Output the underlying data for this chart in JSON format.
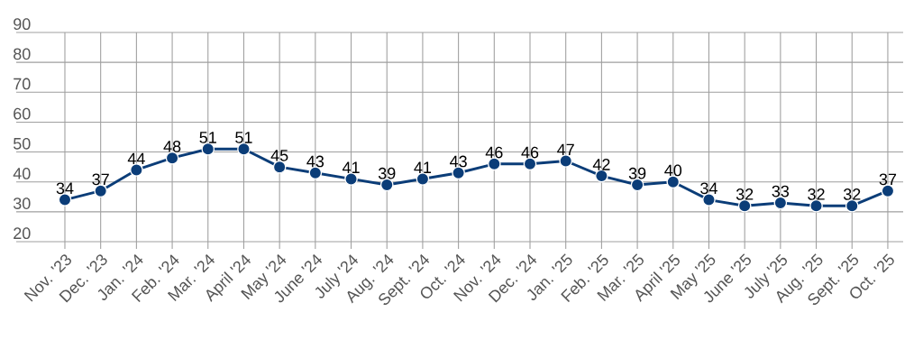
{
  "chart_data": {
    "type": "line",
    "categories": [
      "Nov. '23",
      "Dec. '23",
      "Jan. '24",
      "Feb. '24",
      "Mar. '24",
      "April '24",
      "May '24",
      "June '24",
      "July '24",
      "Aug. '24",
      "Sept. '24",
      "Oct. '24",
      "Nov. '24",
      "Dec. '24",
      "Jan. '25",
      "Feb. '25",
      "Mar. '25",
      "April '25",
      "May '25",
      "June '25",
      "July '25",
      "Aug. '25",
      "Sept. '25",
      "Oct. '25"
    ],
    "values": [
      34,
      37,
      44,
      48,
      51,
      51,
      45,
      43,
      41,
      39,
      41,
      43,
      46,
      46,
      47,
      42,
      39,
      40,
      34,
      32,
      33,
      32,
      32,
      37
    ],
    "color": "#0b3d78",
    "ylim": [
      20,
      90
    ],
    "yticks": [
      20,
      30,
      40,
      50,
      60,
      70,
      80,
      90
    ],
    "grid": true,
    "marker": "circle",
    "line_style": "solid",
    "data_labels": true
  }
}
